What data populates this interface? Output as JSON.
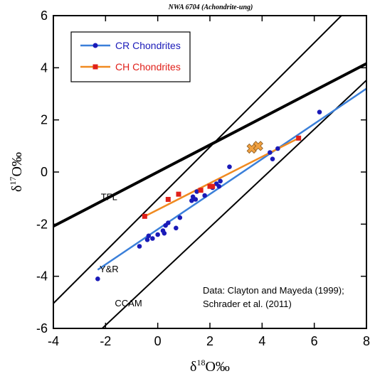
{
  "chart_data": {
    "type": "scatter",
    "title": "NWA 6704 (Achondrite-ung)",
    "xlabel": "δ18O‰",
    "ylabel": "δ17O‰",
    "xlim": [
      -4,
      8
    ],
    "ylim": [
      -6,
      6
    ],
    "xticks": [
      -4,
      -2,
      0,
      2,
      4,
      6,
      8
    ],
    "yticks": [
      -6,
      -4,
      -2,
      0,
      2,
      4,
      6
    ],
    "grid": false,
    "legend_position": "top-left",
    "series": [
      {
        "name": "CR Chondrites",
        "color": "#1a1ab8",
        "fit_color": "#3a7fd9",
        "marker": "circle",
        "points": [
          [
            -2.3,
            -4.1
          ],
          [
            -0.7,
            -2.85
          ],
          [
            -0.4,
            -2.6
          ],
          [
            -0.35,
            -2.45
          ],
          [
            -0.2,
            -2.55
          ],
          [
            0.0,
            -2.4
          ],
          [
            0.2,
            -2.25
          ],
          [
            0.25,
            -2.35
          ],
          [
            0.3,
            -2.05
          ],
          [
            0.4,
            -1.95
          ],
          [
            0.7,
            -2.15
          ],
          [
            0.85,
            -1.75
          ],
          [
            1.3,
            -1.1
          ],
          [
            1.35,
            -0.95
          ],
          [
            1.45,
            -1.05
          ],
          [
            1.5,
            -0.75
          ],
          [
            1.8,
            -0.9
          ],
          [
            2.05,
            -0.55
          ],
          [
            2.1,
            -0.6
          ],
          [
            2.25,
            -0.45
          ],
          [
            2.35,
            -0.55
          ],
          [
            2.4,
            -0.35
          ],
          [
            2.75,
            0.2
          ],
          [
            4.3,
            0.75
          ],
          [
            4.4,
            0.5
          ],
          [
            4.6,
            0.9
          ],
          [
            6.2,
            2.3
          ]
        ],
        "fit": [
          [
            -2.3,
            -3.75
          ],
          [
            8.0,
            3.2
          ]
        ]
      },
      {
        "name": "CH Chondrites",
        "color": "#e0201a",
        "fit_color": "#f08a20",
        "marker": "square",
        "points": [
          [
            -0.5,
            -1.7
          ],
          [
            0.4,
            -1.05
          ],
          [
            0.8,
            -0.85
          ],
          [
            1.65,
            -0.7
          ],
          [
            2.0,
            -0.55
          ],
          [
            2.1,
            -0.55
          ],
          [
            5.4,
            1.3
          ]
        ],
        "fit": [
          [
            -0.5,
            -1.7
          ],
          [
            5.4,
            1.3
          ]
        ]
      },
      {
        "name": "NWA 6704",
        "color": "#f0a040",
        "marker": "cross",
        "points": [
          [
            3.6,
            0.9
          ],
          [
            3.85,
            1.0
          ]
        ]
      }
    ],
    "reference_lines": [
      {
        "label": "TFL",
        "slope": 0.52,
        "intercept": 0.0,
        "width": 4
      },
      {
        "label": "Y&R",
        "slope": 1.0,
        "intercept": -1.04,
        "width": 2
      },
      {
        "label": "CCAM",
        "slope": 0.94,
        "intercept": -4.0,
        "width": 2
      }
    ],
    "annotations": [
      "Data: Clayton and Mayeda (1999);",
      "Schrader et al. (2011)"
    ]
  }
}
